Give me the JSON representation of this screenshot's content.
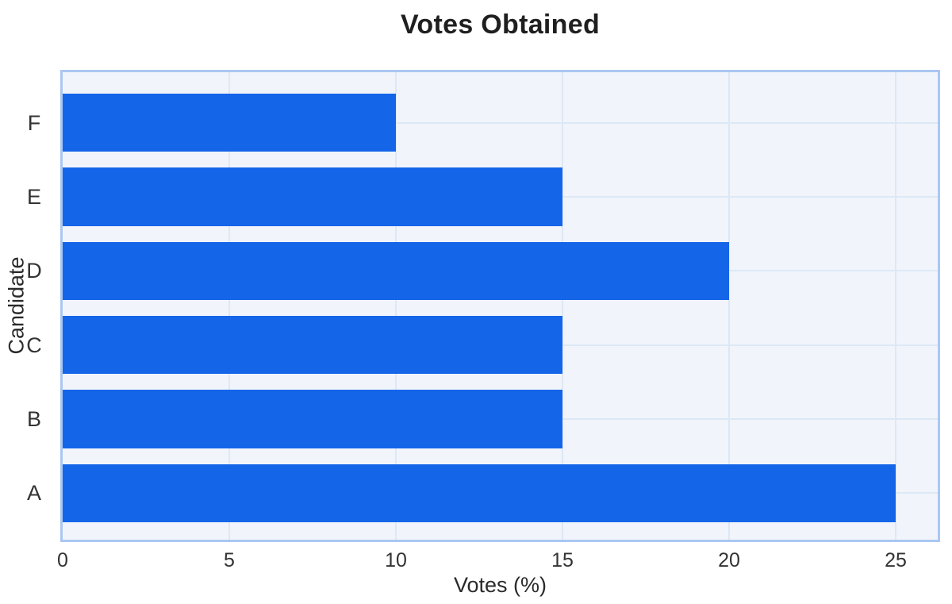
{
  "title": "Votes Obtained",
  "chart_data": {
    "type": "bar",
    "orientation": "horizontal",
    "title": "Votes Obtained",
    "xlabel": "Votes (%)",
    "ylabel": "Candidate",
    "categories": [
      "A",
      "B",
      "C",
      "D",
      "E",
      "F"
    ],
    "values": [
      25,
      15,
      15,
      20,
      15,
      10
    ],
    "xticks": [
      0,
      5,
      10,
      15,
      20,
      25
    ],
    "xlim": [
      0,
      26.25
    ],
    "grid": true,
    "legend": "none",
    "colors": {
      "bar": "#1565e9",
      "plot_background": "#f1f5fb",
      "plot_border": "#aac7f2",
      "gridline": "#dde8f6",
      "title_text": "#1f1f1f",
      "tick_text": "#333333"
    }
  }
}
